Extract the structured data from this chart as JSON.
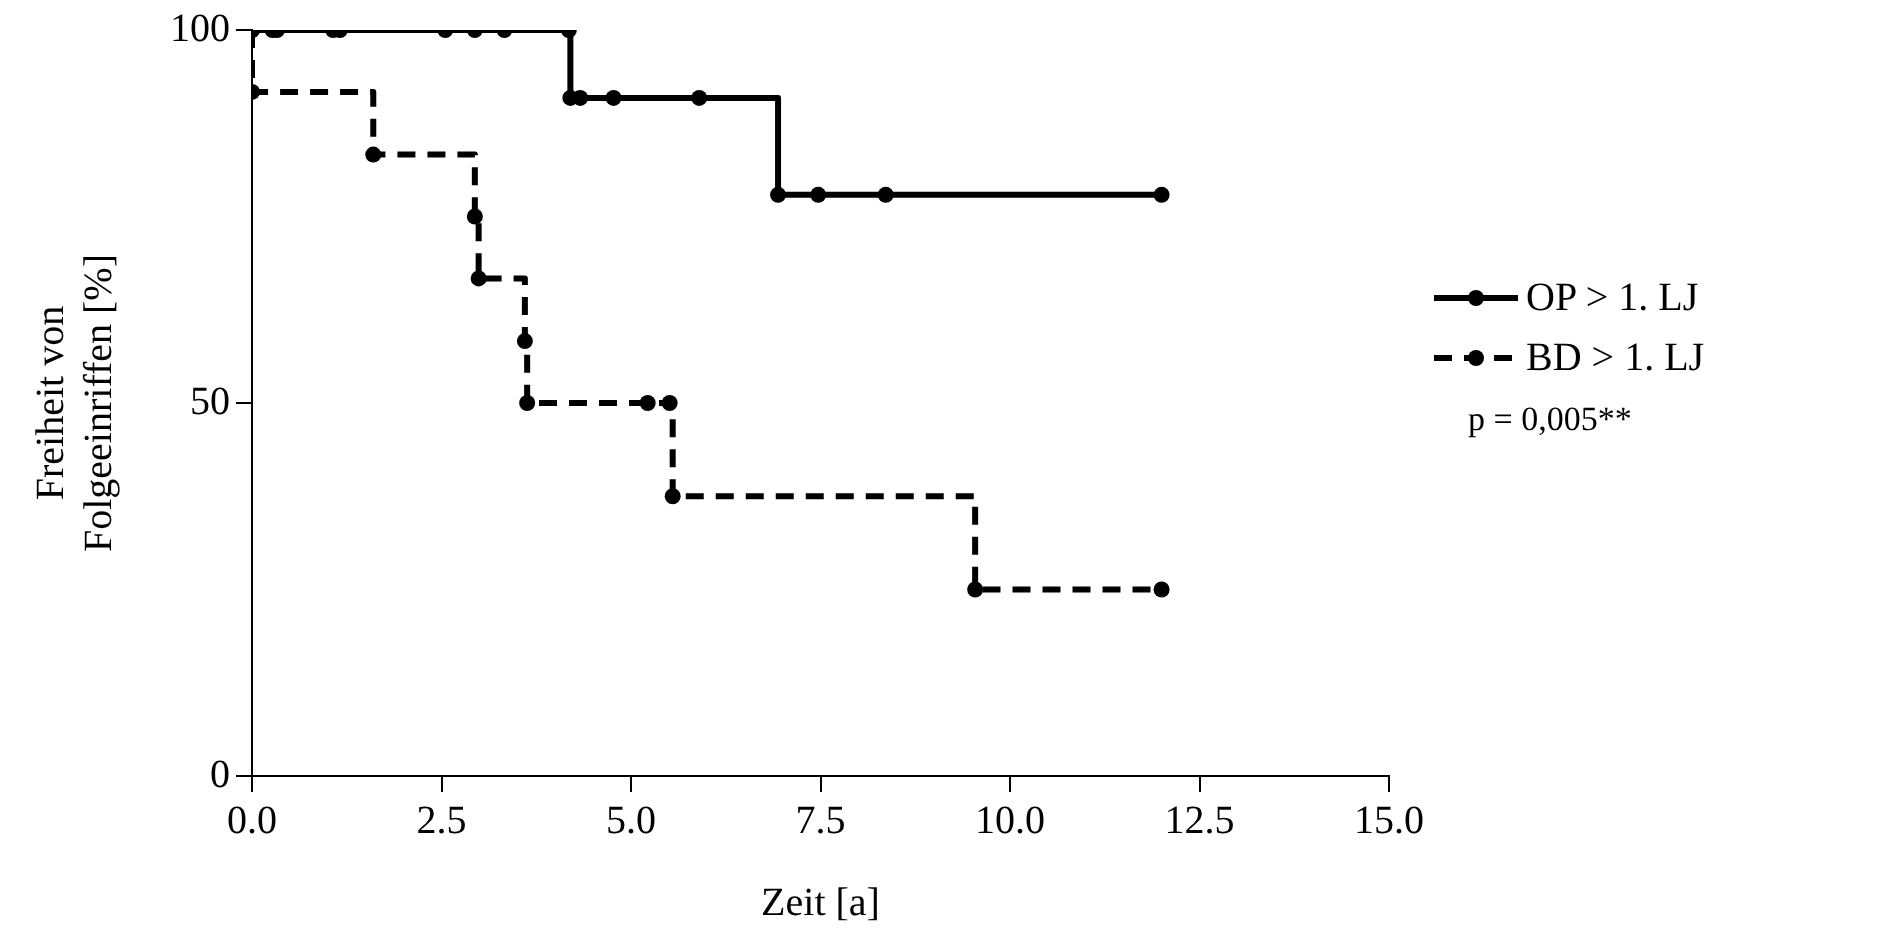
{
  "chart_data": {
    "type": "step",
    "xlabel": "Zeit [a]",
    "ylabel": "Freiheit von\nFolgeeinriffen [%]",
    "xlim": [
      0,
      15
    ],
    "xticks": [
      {
        "value": 0,
        "label": "0.0"
      },
      {
        "value": 2.5,
        "label": "2.5"
      },
      {
        "value": 5,
        "label": "5.0"
      },
      {
        "value": 7.5,
        "label": "7.5"
      },
      {
        "value": 10,
        "label": "10.0"
      },
      {
        "value": 12.5,
        "label": "12.5"
      },
      {
        "value": 15,
        "label": "15.0"
      }
    ],
    "ylim": [
      0,
      100
    ],
    "yticks": [
      0,
      50,
      100
    ],
    "grid": false,
    "legend": "right",
    "marker": "circle",
    "series": [
      {
        "name": "OP > 1. LJ",
        "color": "#000000",
        "line_style": "solid",
        "x": [
          0,
          0.27,
          0.33,
          1.07,
          1.16,
          2.55,
          2.94,
          3.33,
          4.18,
          4.2,
          4.33,
          4.77,
          5.9,
          6.94,
          7.47,
          8.36,
          12
        ],
        "values": [
          100,
          100,
          100,
          100,
          100,
          100,
          100,
          100,
          100,
          90.9,
          90.9,
          90.9,
          90.9,
          77.9,
          77.9,
          77.9,
          77.9
        ]
      },
      {
        "name": "BD > 1. LJ",
        "color": "#000000",
        "line_style": "dashed",
        "x": [
          0,
          0,
          1.6,
          2.94,
          2.99,
          3.6,
          3.63,
          5.22,
          5.51,
          5.55,
          9.54,
          12
        ],
        "values": [
          100,
          91.7,
          83.3,
          75,
          66.7,
          58.3,
          50,
          50,
          50,
          37.5,
          25,
          25
        ]
      }
    ],
    "annotations": [
      "p = 0,005**"
    ]
  }
}
